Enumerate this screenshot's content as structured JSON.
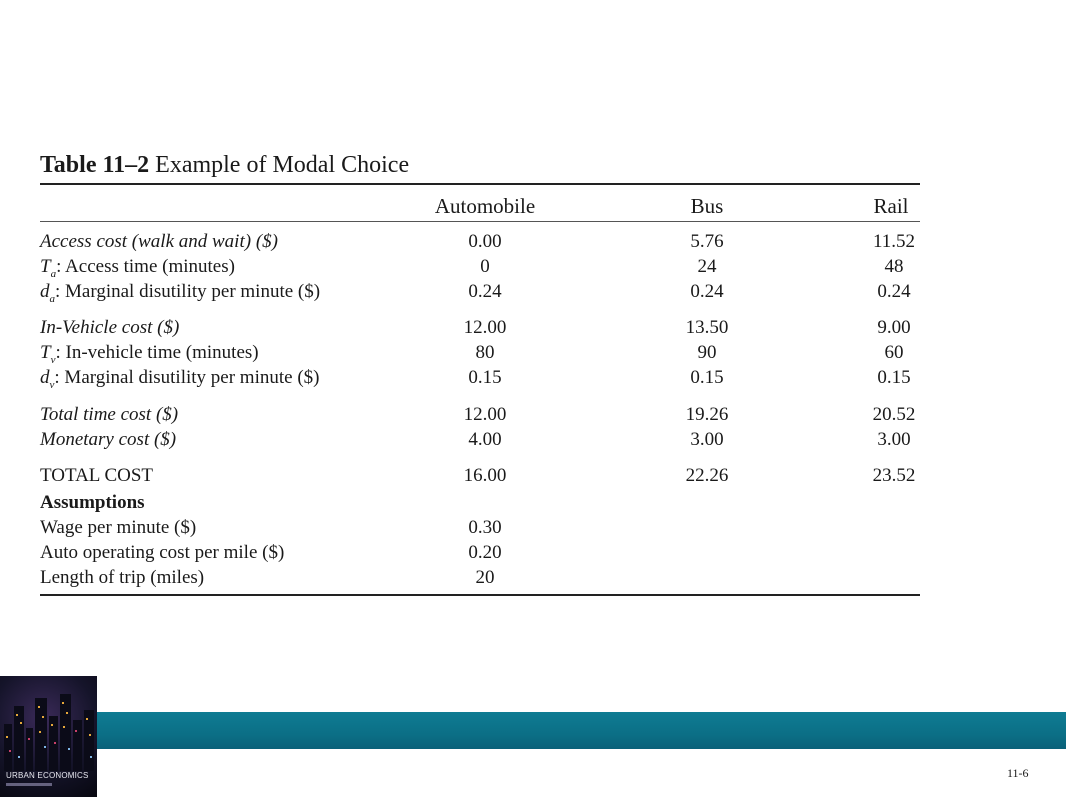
{
  "table": {
    "number": "Table 11–2",
    "title": "Example of Modal Choice",
    "columns": [
      "Automobile",
      "Bus",
      "Rail"
    ],
    "rows": [
      {
        "label": "Access cost (walk and wait) ($)",
        "values": [
          "0.00",
          "5.76",
          "11.52"
        ]
      },
      {
        "symbol": "T",
        "sub": "a",
        "label": ": Access time (minutes)",
        "values": [
          "0",
          "24",
          "48"
        ]
      },
      {
        "symbol": "d",
        "sub": "a",
        "label": ": Marginal disutility per minute ($)",
        "values": [
          "0.24",
          "0.24",
          "0.24"
        ]
      },
      {
        "label": "In-Vehicle cost ($)",
        "values": [
          "12.00",
          "13.50",
          "9.00"
        ]
      },
      {
        "symbol": "T",
        "sub": "v",
        "label": ": In-vehicle time (minutes)",
        "values": [
          "80",
          "90",
          "60"
        ]
      },
      {
        "symbol": "d",
        "sub": "v",
        "label": ": Marginal disutility per minute ($)",
        "values": [
          "0.15",
          "0.15",
          "0.15"
        ]
      },
      {
        "label": "Total time cost ($)",
        "values": [
          "12.00",
          "19.26",
          "20.52"
        ]
      },
      {
        "label": "Monetary cost ($)",
        "values": [
          "4.00",
          "3.00",
          "3.00"
        ]
      },
      {
        "label": "TOTAL COST",
        "values": [
          "16.00",
          "22.26",
          "23.52"
        ]
      },
      {
        "label": "Assumptions"
      },
      {
        "label": "Wage per minute ($)",
        "values": [
          "0.30"
        ]
      },
      {
        "label": "Auto operating cost per mile ($)",
        "values": [
          "0.20"
        ]
      },
      {
        "label": "Length of trip (miles)",
        "values": [
          "20"
        ]
      }
    ]
  },
  "book_cover": {
    "title": "URBAN ECONOMICS"
  },
  "footer": {
    "page_number": "11-6",
    "banner_color": "#0b6f86"
  }
}
